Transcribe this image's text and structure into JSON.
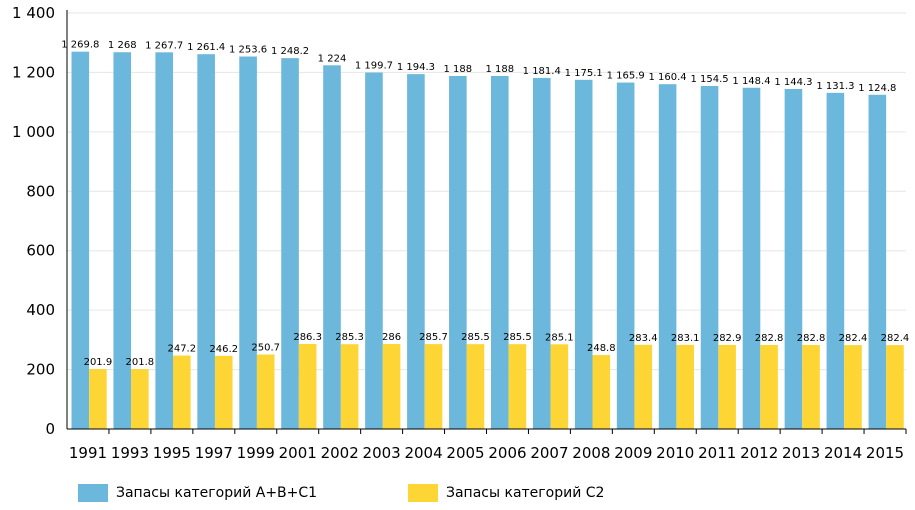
{
  "chart_data": {
    "type": "bar",
    "title": "",
    "xlabel": "",
    "ylabel": "",
    "ylim": [
      0,
      1400
    ],
    "yticks": [
      "0",
      "200",
      "400",
      "600",
      "800",
      "1 000",
      "1 200",
      "1 400"
    ],
    "grid": true,
    "legend_position": "bottom",
    "categories": [
      "1991",
      "1993",
      "1995",
      "1997",
      "1999",
      "2001",
      "2002",
      "2003",
      "2004",
      "2005",
      "2006",
      "2007",
      "2008",
      "2009",
      "2010",
      "2011",
      "2012",
      "2013",
      "2014",
      "2015"
    ],
    "series": [
      {
        "name": "Запасы категорий А+В+С1",
        "color": "#6cb7dc",
        "values": [
          1269.8,
          1268,
          1267.7,
          1261.4,
          1253.6,
          1248.2,
          1224,
          1199.7,
          1194.3,
          1188,
          1188,
          1181.4,
          1175.1,
          1165.9,
          1160.4,
          1154.5,
          1148.4,
          1144.3,
          1131.3,
          1124.8
        ],
        "labels": [
          "1 269.8",
          "1 268",
          "1 267.7",
          "1 261.4",
          "1 253.6",
          "1 248.2",
          "1 224",
          "1 199.7",
          "1 194.3",
          "1 188",
          "1 188",
          "1 181.4",
          "1 175.1",
          "1 165.9",
          "1 160.4",
          "1 154.5",
          "1 148.4",
          "1 144.3",
          "1 131.3",
          "1 124.8"
        ]
      },
      {
        "name": "Запасы категорий С2",
        "color": "#fdd636",
        "values": [
          201.9,
          201.8,
          247.2,
          246.2,
          250.7,
          286.3,
          285.3,
          286,
          285.7,
          285.5,
          285.5,
          285.1,
          248.8,
          283.4,
          283.1,
          282.9,
          282.8,
          282.8,
          282.4,
          282.4
        ],
        "labels": [
          "201.9",
          "201.8",
          "247.2",
          "246.2",
          "250.7",
          "286.3",
          "285.3",
          "286",
          "285.7",
          "285.5",
          "285.5",
          "285.1",
          "248.8",
          "283.4",
          "283.1",
          "282.9",
          "282.8",
          "282.8",
          "282.4",
          "282.4"
        ]
      }
    ]
  }
}
